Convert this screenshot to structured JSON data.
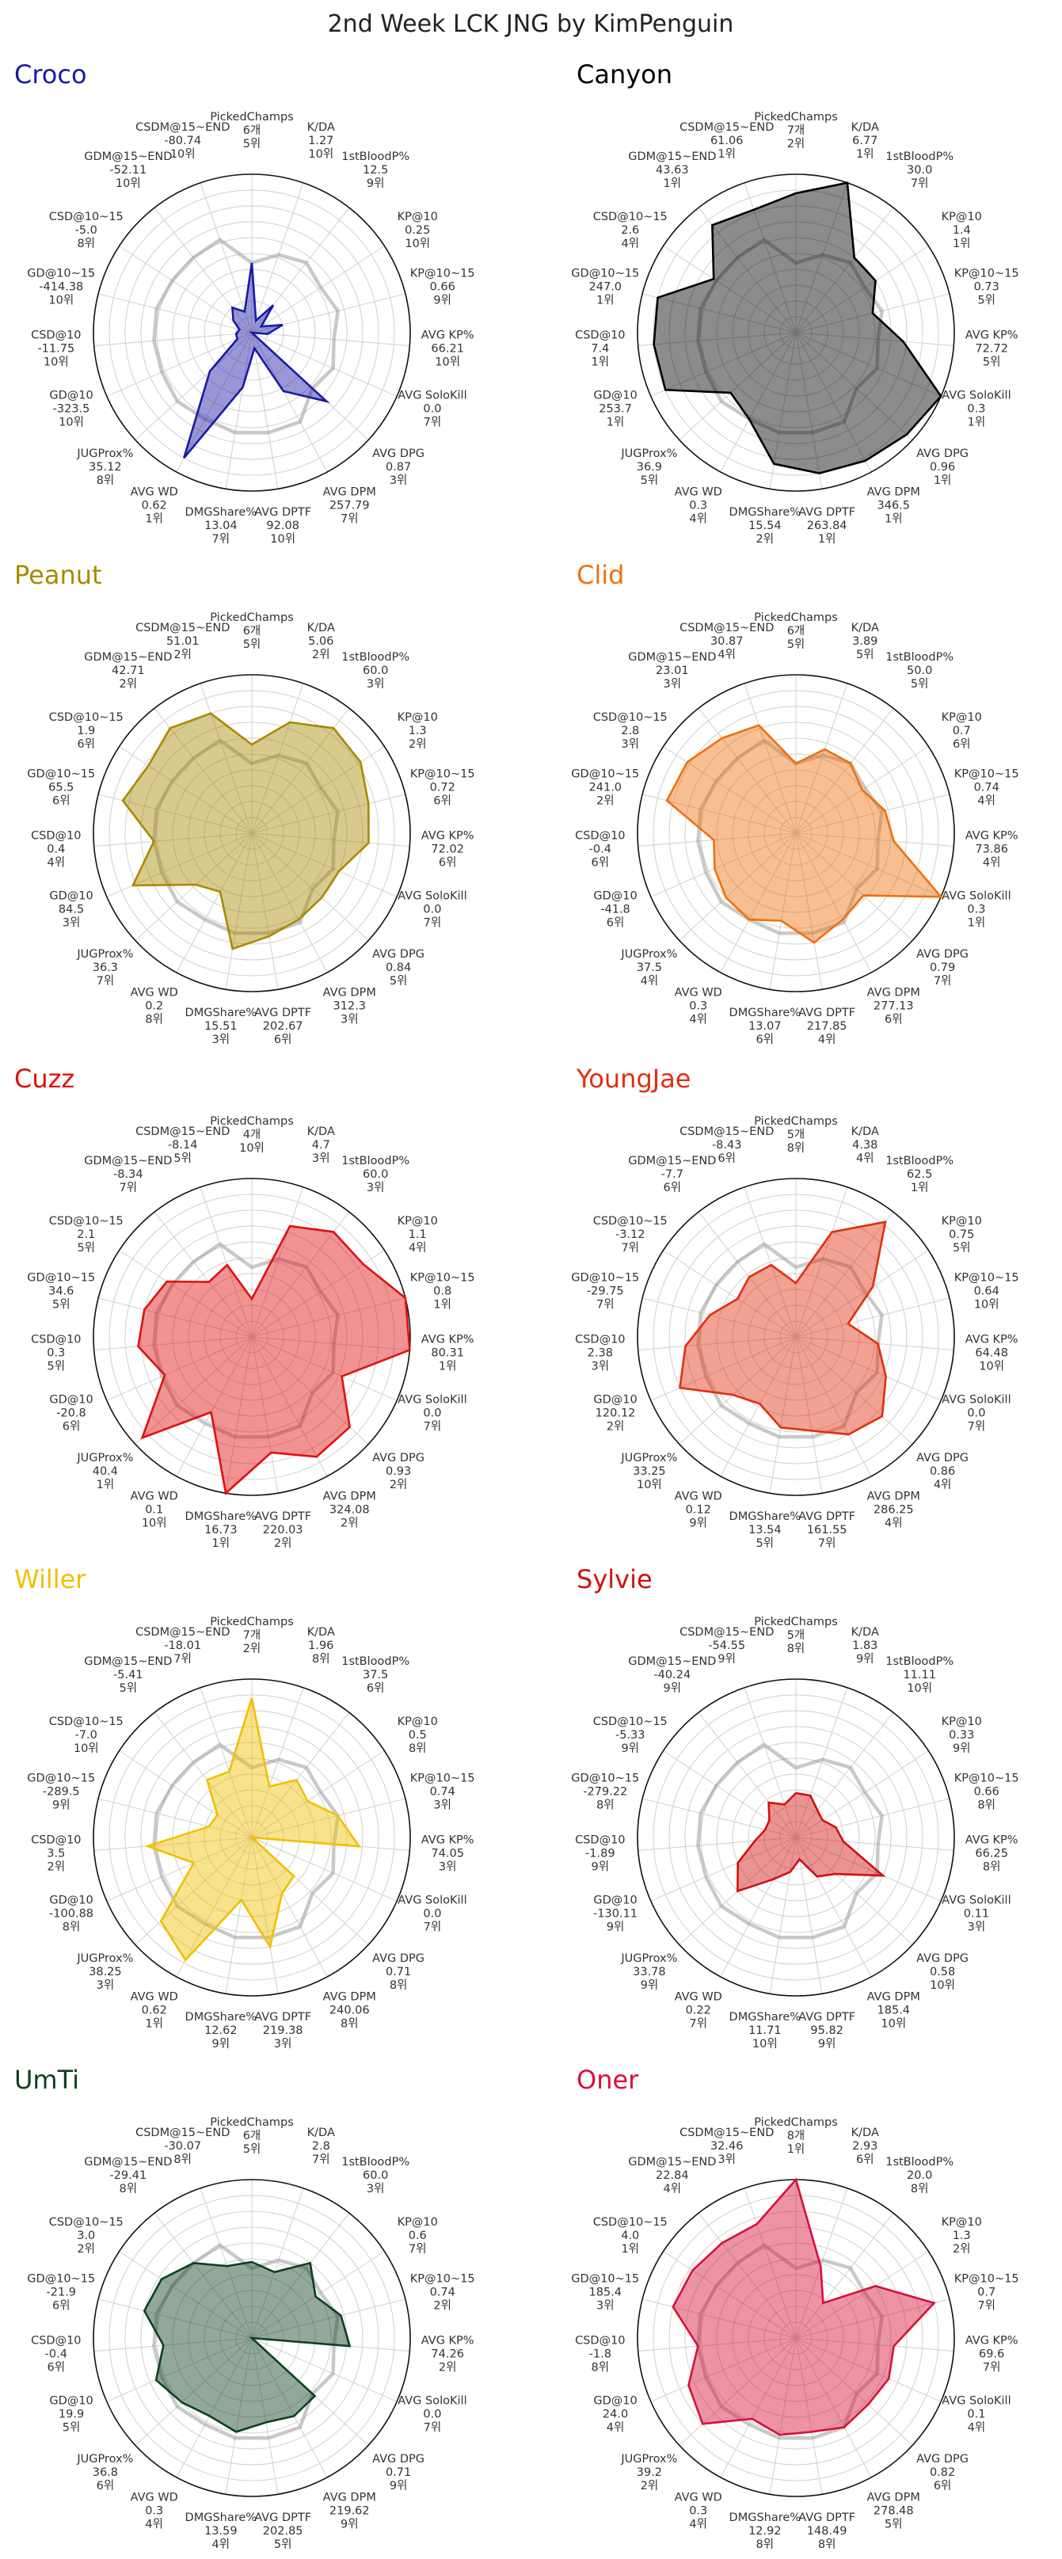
{
  "title": "2nd Week LCK JNG by KimPenguin",
  "chart_data": {
    "type": "radar",
    "title": "2nd Week LCK JNG by KimPenguin",
    "axes": [
      "PickedChamps",
      "K/DA",
      "1stBloodP%",
      "KP@10",
      "KP@10~15",
      "AVG KP%",
      "AVG SoloKill",
      "AVG DPG",
      "AVG DPM",
      "AVG DPTF",
      "DMGShare%",
      "AVG WD",
      "JUGProx%",
      "GD@10",
      "CSD@10",
      "GD@10~15",
      "CSD@10~15",
      "GDM@15~END",
      "CSDM@15~END"
    ],
    "grid": true,
    "reference_series": {
      "name": "",
      "color": "#888888",
      "values_normalized": [
        0.44,
        0.52,
        0.56,
        0.52,
        0.56,
        0.52,
        0.56,
        0.52,
        0.64,
        0.64,
        0.64,
        0.62,
        0.64,
        0.62,
        0.62,
        0.62,
        0.6,
        0.6,
        0.62
      ]
    },
    "series": [
      {
        "name": "Croco",
        "color": "#1a1aa6",
        "values": [
          "6개",
          "1.27",
          "12.5",
          "0.25",
          "0.66",
          "66.21",
          "0.0",
          "0.87",
          "257.79",
          "92.08",
          "13.04",
          "0.62",
          "35.12",
          "-323.5",
          "-11.75",
          "-414.38",
          "-5.0",
          "-52.11",
          "-80.74"
        ],
        "ranks": [
          "5위",
          "10위",
          "9위",
          "10위",
          "9위",
          "10위",
          "7위",
          "3위",
          "7위",
          "10위",
          "7위",
          "1위",
          "8위",
          "10위",
          "10위",
          "10위",
          "8위",
          "10위",
          "10위"
        ],
        "values_normalized": [
          0.44,
          0.08,
          0.22,
          0.07,
          0.2,
          0.1,
          0.0,
          0.64,
          0.42,
          0.1,
          0.35,
          0.9,
          0.36,
          0.1,
          0.1,
          0.08,
          0.14,
          0.2,
          0.14
        ]
      },
      {
        "name": "Canyon",
        "color": "#000000",
        "values": [
          "7개",
          "6.77",
          "30.0",
          "1.4",
          "0.73",
          "72.72",
          "0.3",
          "0.96",
          "346.5",
          "263.84",
          "15.54",
          "0.3",
          "36.9",
          "253.7",
          "7.4",
          "247.0",
          "2.6",
          "43.63",
          "61.06"
        ],
        "ranks": [
          "2위",
          "1위",
          "7위",
          "1위",
          "5위",
          "5위",
          "1위",
          "1위",
          "1위",
          "1위",
          "2위",
          "4위",
          "5위",
          "1위",
          "1위",
          "1위",
          "4위",
          "1위",
          "1위"
        ],
        "values_normalized": [
          0.88,
          1.0,
          0.6,
          0.6,
          0.5,
          0.68,
          1.0,
          0.95,
          0.92,
          0.9,
          0.84,
          0.62,
          0.56,
          0.9,
          0.9,
          0.9,
          0.62,
          0.86,
          0.82
        ]
      },
      {
        "name": "Peanut",
        "color": "#a88a00",
        "values": [
          "6개",
          "5.06",
          "60.0",
          "1.3",
          "0.72",
          "72.02",
          "0.0",
          "0.84",
          "312.3",
          "202.67",
          "15.51",
          "0.2",
          "36.3",
          "84.5",
          "0.4",
          "65.5",
          "1.9",
          "42.71",
          "51.01"
        ],
        "ranks": [
          "5위",
          "2위",
          "3위",
          "2위",
          "6위",
          "6위",
          "7위",
          "5위",
          "3위",
          "6위",
          "3위",
          "8위",
          "7위",
          "3위",
          "4위",
          "6위",
          "6위",
          "2위",
          "2위"
        ],
        "values_normalized": [
          0.56,
          0.74,
          0.84,
          0.82,
          0.76,
          0.74,
          0.6,
          0.6,
          0.62,
          0.66,
          0.74,
          0.42,
          0.48,
          0.82,
          0.62,
          0.84,
          0.78,
          0.84,
          0.8
        ]
      },
      {
        "name": "Clid",
        "color": "#f07010",
        "values": [
          "6개",
          "3.89",
          "50.0",
          "0.7",
          "0.74",
          "73.86",
          "0.3",
          "0.79",
          "277.13",
          "217.85",
          "13.07",
          "0.3",
          "37.5",
          "-41.8",
          "-0.4",
          "241.0",
          "2.8",
          "23.01",
          "30.87"
        ],
        "ranks": [
          "5위",
          "5위",
          "5위",
          "6위",
          "4위",
          "4위",
          "1위",
          "7위",
          "6위",
          "4위",
          "6위",
          "4위",
          "4위",
          "6위",
          "6위",
          "2위",
          "3위",
          "3위",
          "4위"
        ],
        "values_normalized": [
          0.44,
          0.56,
          0.56,
          0.5,
          0.58,
          0.62,
          1.0,
          0.58,
          0.62,
          0.7,
          0.56,
          0.62,
          0.6,
          0.56,
          0.52,
          0.84,
          0.82,
          0.76,
          0.72
        ]
      },
      {
        "name": "Cuzz",
        "color": "#e01010",
        "values": [
          "4개",
          "4.7",
          "60.0",
          "1.1",
          "0.8",
          "80.31",
          "0.0",
          "0.93",
          "324.08",
          "220.03",
          "16.73",
          "0.1",
          "40.4",
          "-20.8",
          "0.3",
          "34.6",
          "2.1",
          "-8.34",
          "-8.14"
        ],
        "ranks": [
          "10위",
          "3위",
          "3위",
          "4위",
          "1위",
          "1위",
          "7위",
          "2위",
          "2위",
          "2위",
          "1위",
          "10위",
          "1위",
          "6위",
          "5위",
          "5위",
          "5위",
          "7위",
          "5위"
        ],
        "values_normalized": [
          0.24,
          0.74,
          0.84,
          0.84,
          1.0,
          1.0,
          0.62,
          0.84,
          0.86,
          0.74,
          1.0,
          0.54,
          0.94,
          0.6,
          0.72,
          0.7,
          0.64,
          0.44,
          0.48
        ]
      },
      {
        "name": "YoungJae",
        "color": "#e03010",
        "values": [
          "5개",
          "4.38",
          "62.5",
          "0.75",
          "0.64",
          "64.48",
          "0.0",
          "0.86",
          "286.25",
          "161.55",
          "13.54",
          "0.12",
          "33.25",
          "120.12",
          "2.38",
          "-29.75",
          "-3.12",
          "-7.7",
          "-8.43"
        ],
        "ranks": [
          "8위",
          "4위",
          "1위",
          "5위",
          "10위",
          "10위",
          "7위",
          "4위",
          "4위",
          "7위",
          "5위",
          "9위",
          "10위",
          "2위",
          "3위",
          "7위",
          "7위",
          "6위",
          "6위"
        ],
        "values_normalized": [
          0.34,
          0.7,
          0.92,
          0.58,
          0.34,
          0.52,
          0.62,
          0.74,
          0.7,
          0.6,
          0.58,
          0.48,
          0.54,
          0.8,
          0.7,
          0.56,
          0.44,
          0.48,
          0.48
        ]
      },
      {
        "name": "Willer",
        "color": "#f0c000",
        "values": [
          "7개",
          "1.96",
          "37.5",
          "0.5",
          "0.74",
          "74.05",
          "0.0",
          "0.71",
          "240.06",
          "219.38",
          "12.62",
          "0.62",
          "38.25",
          "-100.88",
          "3.5",
          "-289.5",
          "-7.0",
          "-5.41",
          "-18.01"
        ],
        "ranks": [
          "2위",
          "8위",
          "6위",
          "8위",
          "3위",
          "3위",
          "7위",
          "8위",
          "8위",
          "3위",
          "9위",
          "1위",
          "3위",
          "8위",
          "2위",
          "9위",
          "10위",
          "5위",
          "7위"
        ],
        "values_normalized": [
          0.88,
          0.34,
          0.46,
          0.42,
          0.56,
          0.68,
          0.0,
          0.36,
          0.4,
          0.7,
          0.4,
          0.88,
          0.78,
          0.4,
          0.66,
          0.28,
          0.26,
          0.46,
          0.44
        ]
      },
      {
        "name": "Sylvie",
        "color": "#d01010",
        "values": [
          "5개",
          "1.83",
          "11.11",
          "0.33",
          "0.66",
          "66.25",
          "0.11",
          "0.58",
          "185.4",
          "95.82",
          "11.71",
          "0.22",
          "33.78",
          "-130.11",
          "-1.89",
          "-279.22",
          "-5.33",
          "-40.24",
          "-54.55"
        ],
        "ranks": [
          "8위",
          "9위",
          "10위",
          "9위",
          "8위",
          "8위",
          "3위",
          "10위",
          "10위",
          "9위",
          "10위",
          "7위",
          "9위",
          "9위",
          "9위",
          "8위",
          "9위",
          "9위",
          "9위"
        ],
        "values_normalized": [
          0.28,
          0.28,
          0.22,
          0.2,
          0.26,
          0.3,
          0.6,
          0.34,
          0.28,
          0.14,
          0.22,
          0.3,
          0.5,
          0.4,
          0.26,
          0.2,
          0.2,
          0.28,
          0.22
        ]
      },
      {
        "name": "UmTi",
        "color": "#0d4020",
        "values": [
          "6개",
          "2.8",
          "60.0",
          "0.6",
          "0.74",
          "74.26",
          "0.0",
          "0.71",
          "219.62",
          "202.85",
          "13.59",
          "0.3",
          "36.8",
          "19.9",
          "-0.4",
          "-21.9",
          "3.0",
          "-29.41",
          "-30.07"
        ],
        "ranks": [
          "5위",
          "7위",
          "3위",
          "7위",
          "2위",
          "2위",
          "7위",
          "9위",
          "9위",
          "5위",
          "4위",
          "4위",
          "6위",
          "5위",
          "6위",
          "6위",
          "2위",
          "8위",
          "8위"
        ],
        "values_normalized": [
          0.48,
          0.44,
          0.6,
          0.48,
          0.58,
          0.62,
          0.0,
          0.54,
          0.56,
          0.54,
          0.6,
          0.56,
          0.6,
          0.66,
          0.56,
          0.7,
          0.68,
          0.6,
          0.48
        ]
      },
      {
        "name": "Oner",
        "color": "#d8103a",
        "values": [
          "8개",
          "2.93",
          "20.0",
          "1.3",
          "0.7",
          "69.6",
          "0.1",
          "0.82",
          "278.48",
          "148.49",
          "12.92",
          "0.3",
          "39.2",
          "24.0",
          "-1.8",
          "185.4",
          "4.0",
          "22.84",
          "32.46"
        ],
        "ranks": [
          "1위",
          "6위",
          "8위",
          "2위",
          "7위",
          "7위",
          "4위",
          "6위",
          "5위",
          "8위",
          "8위",
          "4위",
          "2위",
          "4위",
          "8위",
          "3위",
          "1위",
          "4위",
          "3위"
        ],
        "values_normalized": [
          1.0,
          0.48,
          0.28,
          0.6,
          0.9,
          0.62,
          0.64,
          0.62,
          0.64,
          0.6,
          0.62,
          0.58,
          0.8,
          0.74,
          0.62,
          0.8,
          0.78,
          0.76,
          0.76
        ]
      }
    ]
  }
}
